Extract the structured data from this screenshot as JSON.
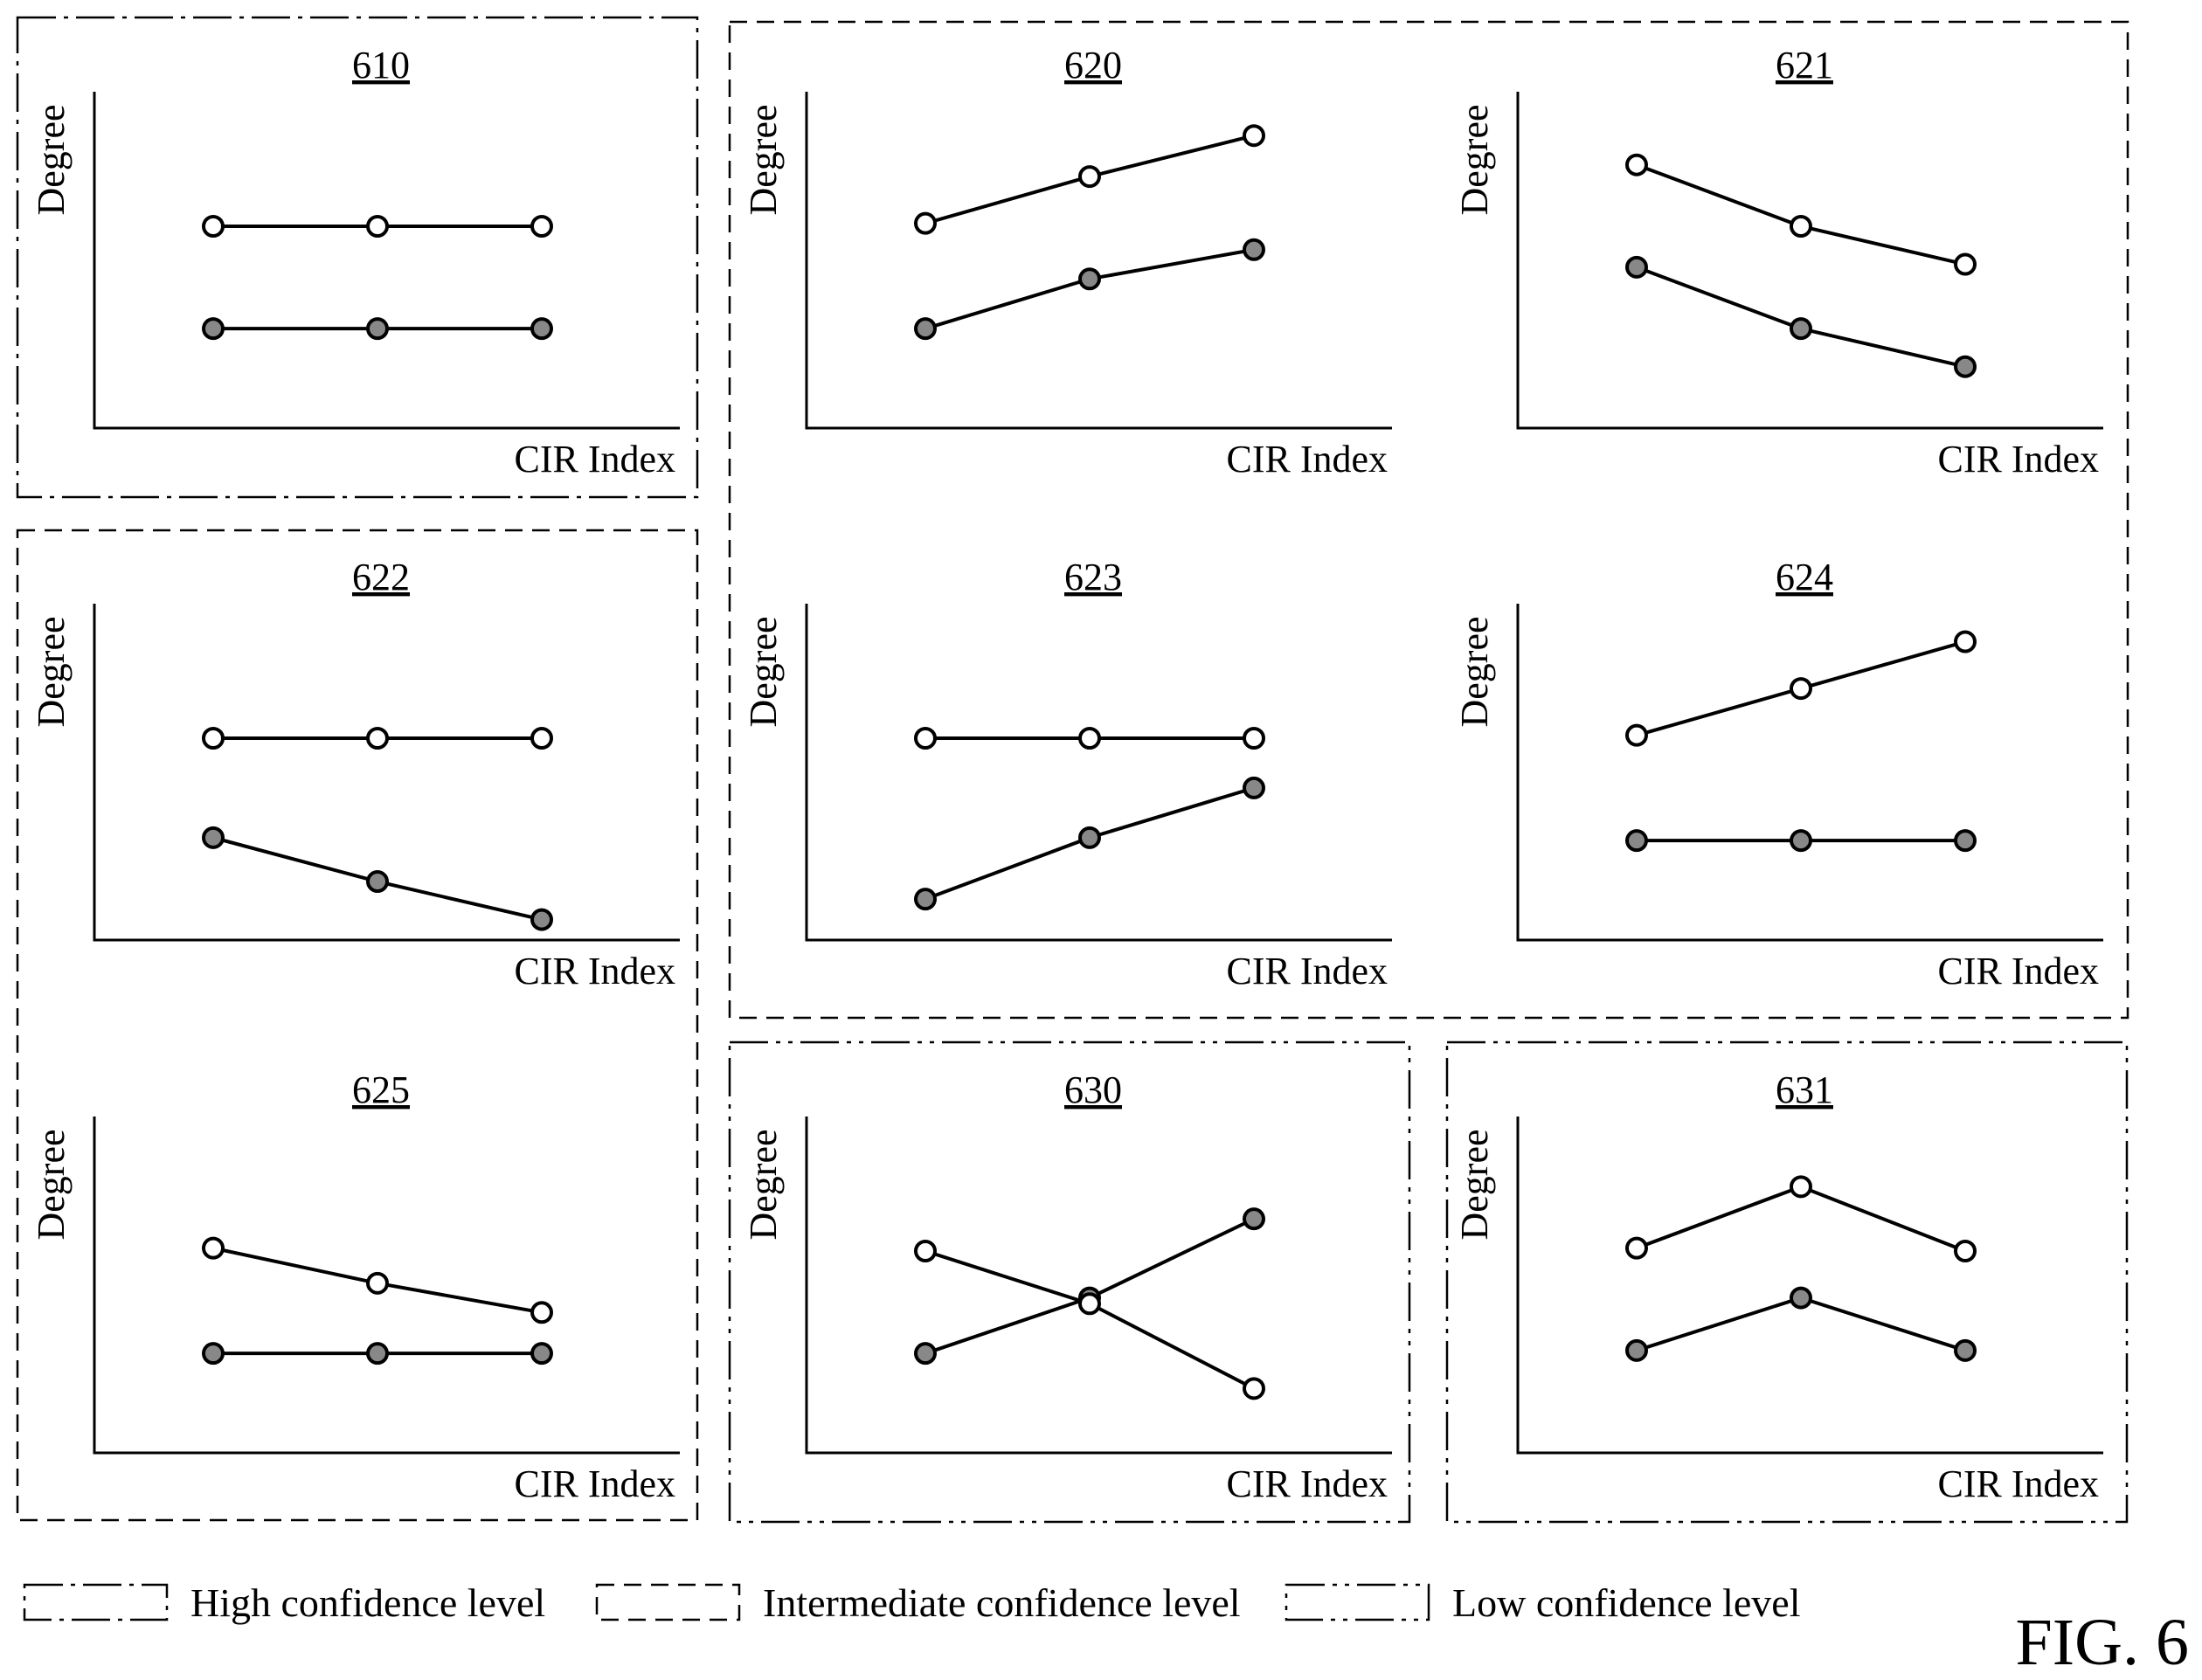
{
  "figure_label": "FIG. 6",
  "axis_labels": {
    "y": "Degree",
    "x": "CIR Index"
  },
  "legend": [
    {
      "confidence": "high",
      "label": "High confidence level",
      "dash": "dash-dot"
    },
    {
      "confidence": "intermediate",
      "label": "Intermediate confidence level",
      "dash": "dashed"
    },
    {
      "confidence": "low",
      "label": "Low confidence level",
      "dash": "dash-dot-dot"
    }
  ],
  "colors": {
    "line": "#000000",
    "open_marker_fill": "#ffffff",
    "filled_marker_fill": "#888888",
    "background": "#ffffff"
  },
  "groups": [
    {
      "confidence": "high",
      "dash": "dash-dot",
      "panels": [
        "610"
      ]
    },
    {
      "confidence": "intermediate",
      "dash": "dashed",
      "panels": [
        "620",
        "621",
        "623",
        "624"
      ]
    },
    {
      "confidence": "intermediate",
      "dash": "dashed",
      "panels": [
        "622",
        "625"
      ]
    },
    {
      "confidence": "low",
      "dash": "dash-dot-dot",
      "panels": [
        "630"
      ]
    },
    {
      "confidence": "low",
      "dash": "dash-dot-dot",
      "panels": [
        "631"
      ]
    }
  ],
  "chart_data": [
    {
      "id": "610",
      "type": "line",
      "title": "610",
      "xlabel": "CIR Index",
      "ylabel": "Degree",
      "series": [
        {
          "marker": "open",
          "values": [
            6.9,
            6.9,
            6.9
          ]
        },
        {
          "marker": "filled",
          "values": [
            3.4,
            3.4,
            3.4
          ]
        }
      ]
    },
    {
      "id": "620",
      "type": "line",
      "title": "620",
      "xlabel": "CIR Index",
      "ylabel": "Degree",
      "series": [
        {
          "marker": "open",
          "values": [
            7.0,
            8.6,
            10.0
          ]
        },
        {
          "marker": "filled",
          "values": [
            3.4,
            5.1,
            6.1
          ]
        }
      ]
    },
    {
      "id": "621",
      "type": "line",
      "title": "621",
      "xlabel": "CIR Index",
      "ylabel": "Degree",
      "series": [
        {
          "marker": "open",
          "values": [
            9.0,
            6.9,
            5.6
          ]
        },
        {
          "marker": "filled",
          "values": [
            5.5,
            3.4,
            2.1
          ]
        }
      ]
    },
    {
      "id": "622",
      "type": "line",
      "title": "622",
      "xlabel": "CIR Index",
      "ylabel": "Degree",
      "series": [
        {
          "marker": "open",
          "values": [
            6.9,
            6.9,
            6.9
          ]
        },
        {
          "marker": "filled",
          "values": [
            3.5,
            2.0,
            0.7
          ]
        }
      ]
    },
    {
      "id": "623",
      "type": "line",
      "title": "623",
      "xlabel": "CIR Index",
      "ylabel": "Degree",
      "series": [
        {
          "marker": "open",
          "values": [
            6.9,
            6.9,
            6.9
          ]
        },
        {
          "marker": "filled",
          "values": [
            1.4,
            3.5,
            5.2
          ]
        }
      ]
    },
    {
      "id": "624",
      "type": "line",
      "title": "624",
      "xlabel": "CIR Index",
      "ylabel": "Degree",
      "series": [
        {
          "marker": "open",
          "values": [
            7.0,
            8.6,
            10.2
          ]
        },
        {
          "marker": "filled",
          "values": [
            3.4,
            3.4,
            3.4
          ]
        }
      ]
    },
    {
      "id": "625",
      "type": "line",
      "title": "625",
      "xlabel": "CIR Index",
      "ylabel": "Degree",
      "series": [
        {
          "marker": "open",
          "values": [
            7.0,
            5.8,
            4.8
          ]
        },
        {
          "marker": "filled",
          "values": [
            3.4,
            3.4,
            3.4
          ]
        }
      ]
    },
    {
      "id": "630",
      "type": "line",
      "title": "630",
      "xlabel": "CIR Index",
      "ylabel": "Degree",
      "series": [
        {
          "marker": "open",
          "values": [
            6.9,
            5.1,
            2.2
          ]
        },
        {
          "marker": "filled",
          "values": [
            3.4,
            5.3,
            8.0
          ]
        }
      ]
    },
    {
      "id": "631",
      "type": "line",
      "title": "631",
      "xlabel": "CIR Index",
      "ylabel": "Degree",
      "series": [
        {
          "marker": "open",
          "values": [
            7.0,
            9.1,
            6.9
          ]
        },
        {
          "marker": "filled",
          "values": [
            3.5,
            5.3,
            3.5
          ]
        }
      ]
    }
  ]
}
